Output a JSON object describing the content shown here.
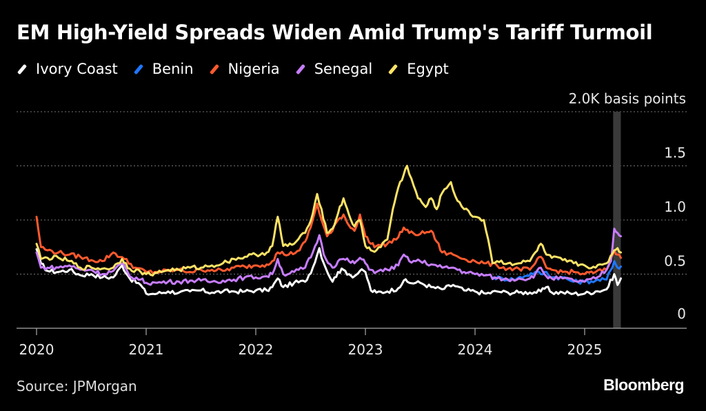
{
  "title": "EM High-Yield Spreads Widen Amid Trump's Tariff Turmoil",
  "source": "Source: JPMorgan",
  "brand": "Bloomberg",
  "chart_data": {
    "type": "line",
    "unit_label": "2.0K basis points",
    "x_ticks": [
      "2020",
      "2021",
      "2022",
      "2023",
      "2024",
      "2025"
    ],
    "y_ticks": [
      {
        "value": 0,
        "label": "0"
      },
      {
        "value": 500,
        "label": "0.5"
      },
      {
        "value": 1000,
        "label": "1.0"
      },
      {
        "value": 1500,
        "label": "1.5"
      },
      {
        "value": 2000,
        "label": "2.0K basis points"
      }
    ],
    "ylim": [
      0,
      2000
    ],
    "xlim": [
      2019.98,
      2025.7
    ],
    "grid": true,
    "legend_position": "top-left",
    "highlight_band": [
      2025.26,
      2025.33
    ],
    "series": [
      {
        "name": "Ivory Coast",
        "color": "#ffffff",
        "points": [
          [
            2020.0,
            730
          ],
          [
            2020.04,
            600
          ],
          [
            2020.1,
            530
          ],
          [
            2020.2,
            520
          ],
          [
            2020.3,
            540
          ],
          [
            2020.4,
            490
          ],
          [
            2020.5,
            500
          ],
          [
            2020.6,
            470
          ],
          [
            2020.7,
            470
          ],
          [
            2020.78,
            580
          ],
          [
            2020.85,
            460
          ],
          [
            2020.95,
            400
          ],
          [
            2021.0,
            320
          ],
          [
            2021.1,
            320
          ],
          [
            2021.2,
            340
          ],
          [
            2021.3,
            330
          ],
          [
            2021.4,
            340
          ],
          [
            2021.5,
            350
          ],
          [
            2021.6,
            330
          ],
          [
            2021.7,
            340
          ],
          [
            2021.8,
            340
          ],
          [
            2021.9,
            340
          ],
          [
            2022.0,
            350
          ],
          [
            2022.1,
            350
          ],
          [
            2022.15,
            380
          ],
          [
            2022.2,
            460
          ],
          [
            2022.25,
            380
          ],
          [
            2022.35,
            420
          ],
          [
            2022.45,
            430
          ],
          [
            2022.52,
            560
          ],
          [
            2022.58,
            740
          ],
          [
            2022.62,
            600
          ],
          [
            2022.7,
            430
          ],
          [
            2022.75,
            520
          ],
          [
            2022.8,
            540
          ],
          [
            2022.85,
            500
          ],
          [
            2022.9,
            480
          ],
          [
            2022.95,
            530
          ],
          [
            2023.0,
            520
          ],
          [
            2023.05,
            350
          ],
          [
            2023.1,
            330
          ],
          [
            2023.2,
            340
          ],
          [
            2023.3,
            370
          ],
          [
            2023.35,
            440
          ],
          [
            2023.4,
            420
          ],
          [
            2023.5,
            420
          ],
          [
            2023.6,
            380
          ],
          [
            2023.7,
            360
          ],
          [
            2023.8,
            400
          ],
          [
            2023.9,
            350
          ],
          [
            2024.0,
            340
          ],
          [
            2024.1,
            320
          ],
          [
            2024.2,
            340
          ],
          [
            2024.3,
            330
          ],
          [
            2024.4,
            330
          ],
          [
            2024.5,
            330
          ],
          [
            2024.6,
            340
          ],
          [
            2024.65,
            380
          ],
          [
            2024.7,
            330
          ],
          [
            2024.8,
            330
          ],
          [
            2024.9,
            320
          ],
          [
            2025.0,
            320
          ],
          [
            2025.1,
            340
          ],
          [
            2025.2,
            360
          ],
          [
            2025.27,
            500
          ],
          [
            2025.3,
            400
          ],
          [
            2025.33,
            460
          ]
        ]
      },
      {
        "name": "Benin",
        "color": "#1f77ff",
        "points": [
          [
            2024.17,
            470
          ],
          [
            2024.25,
            460
          ],
          [
            2024.35,
            450
          ],
          [
            2024.45,
            480
          ],
          [
            2024.55,
            520
          ],
          [
            2024.6,
            500
          ],
          [
            2024.65,
            520
          ],
          [
            2024.7,
            470
          ],
          [
            2024.8,
            470
          ],
          [
            2024.9,
            430
          ],
          [
            2025.0,
            430
          ],
          [
            2025.1,
            440
          ],
          [
            2025.2,
            450
          ],
          [
            2025.27,
            620
          ],
          [
            2025.3,
            560
          ],
          [
            2025.33,
            570
          ]
        ]
      },
      {
        "name": "Nigeria",
        "color": "#ff5a2e",
        "points": [
          [
            2020.0,
            1030
          ],
          [
            2020.04,
            750
          ],
          [
            2020.1,
            720
          ],
          [
            2020.2,
            700
          ],
          [
            2020.3,
            680
          ],
          [
            2020.4,
            660
          ],
          [
            2020.5,
            630
          ],
          [
            2020.6,
            620
          ],
          [
            2020.7,
            700
          ],
          [
            2020.8,
            640
          ],
          [
            2020.9,
            560
          ],
          [
            2021.0,
            520
          ],
          [
            2021.1,
            520
          ],
          [
            2021.2,
            530
          ],
          [
            2021.3,
            540
          ],
          [
            2021.4,
            520
          ],
          [
            2021.5,
            540
          ],
          [
            2021.6,
            540
          ],
          [
            2021.7,
            530
          ],
          [
            2021.8,
            560
          ],
          [
            2021.9,
            570
          ],
          [
            2022.0,
            580
          ],
          [
            2022.1,
            590
          ],
          [
            2022.15,
            620
          ],
          [
            2022.2,
            700
          ],
          [
            2022.3,
            680
          ],
          [
            2022.4,
            720
          ],
          [
            2022.45,
            800
          ],
          [
            2022.5,
            930
          ],
          [
            2022.56,
            1150
          ],
          [
            2022.6,
            1000
          ],
          [
            2022.65,
            850
          ],
          [
            2022.7,
            900
          ],
          [
            2022.75,
            1000
          ],
          [
            2022.8,
            1050
          ],
          [
            2022.85,
            950
          ],
          [
            2022.9,
            900
          ],
          [
            2022.95,
            1050
          ],
          [
            2023.0,
            850
          ],
          [
            2023.05,
            780
          ],
          [
            2023.1,
            760
          ],
          [
            2023.2,
            780
          ],
          [
            2023.3,
            840
          ],
          [
            2023.35,
            930
          ],
          [
            2023.4,
            880
          ],
          [
            2023.5,
            870
          ],
          [
            2023.6,
            900
          ],
          [
            2023.65,
            800
          ],
          [
            2023.7,
            700
          ],
          [
            2023.8,
            680
          ],
          [
            2023.9,
            640
          ],
          [
            2024.0,
            620
          ],
          [
            2024.1,
            600
          ],
          [
            2024.2,
            580
          ],
          [
            2024.3,
            550
          ],
          [
            2024.4,
            550
          ],
          [
            2024.5,
            540
          ],
          [
            2024.55,
            600
          ],
          [
            2024.6,
            660
          ],
          [
            2024.65,
            560
          ],
          [
            2024.7,
            540
          ],
          [
            2024.8,
            520
          ],
          [
            2024.9,
            520
          ],
          [
            2025.0,
            500
          ],
          [
            2025.1,
            520
          ],
          [
            2025.2,
            540
          ],
          [
            2025.27,
            720
          ],
          [
            2025.3,
            680
          ],
          [
            2025.33,
            650
          ]
        ]
      },
      {
        "name": "Senegal",
        "color": "#c77dff",
        "points": [
          [
            2020.0,
            700
          ],
          [
            2020.04,
            560
          ],
          [
            2020.1,
            560
          ],
          [
            2020.2,
            560
          ],
          [
            2020.3,
            580
          ],
          [
            2020.4,
            540
          ],
          [
            2020.5,
            540
          ],
          [
            2020.6,
            500
          ],
          [
            2020.7,
            530
          ],
          [
            2020.78,
            600
          ],
          [
            2020.85,
            480
          ],
          [
            2020.95,
            450
          ],
          [
            2021.0,
            420
          ],
          [
            2021.1,
            420
          ],
          [
            2021.2,
            430
          ],
          [
            2021.3,
            430
          ],
          [
            2021.4,
            440
          ],
          [
            2021.5,
            440
          ],
          [
            2021.6,
            430
          ],
          [
            2021.7,
            440
          ],
          [
            2021.8,
            450
          ],
          [
            2021.9,
            470
          ],
          [
            2022.0,
            470
          ],
          [
            2022.1,
            480
          ],
          [
            2022.15,
            500
          ],
          [
            2022.2,
            640
          ],
          [
            2022.25,
            500
          ],
          [
            2022.35,
            520
          ],
          [
            2022.45,
            560
          ],
          [
            2022.52,
            700
          ],
          [
            2022.58,
            860
          ],
          [
            2022.62,
            680
          ],
          [
            2022.7,
            560
          ],
          [
            2022.75,
            620
          ],
          [
            2022.8,
            640
          ],
          [
            2022.85,
            620
          ],
          [
            2022.9,
            600
          ],
          [
            2022.95,
            650
          ],
          [
            2023.0,
            600
          ],
          [
            2023.05,
            540
          ],
          [
            2023.1,
            520
          ],
          [
            2023.2,
            540
          ],
          [
            2023.3,
            580
          ],
          [
            2023.35,
            680
          ],
          [
            2023.4,
            620
          ],
          [
            2023.5,
            620
          ],
          [
            2023.6,
            590
          ],
          [
            2023.7,
            560
          ],
          [
            2023.8,
            560
          ],
          [
            2023.9,
            520
          ],
          [
            2024.0,
            500
          ],
          [
            2024.1,
            490
          ],
          [
            2024.2,
            460
          ],
          [
            2024.3,
            450
          ],
          [
            2024.4,
            460
          ],
          [
            2024.5,
            460
          ],
          [
            2024.55,
            500
          ],
          [
            2024.6,
            560
          ],
          [
            2024.65,
            480
          ],
          [
            2024.7,
            460
          ],
          [
            2024.8,
            460
          ],
          [
            2024.9,
            440
          ],
          [
            2025.0,
            430
          ],
          [
            2025.1,
            460
          ],
          [
            2025.2,
            540
          ],
          [
            2025.24,
            620
          ],
          [
            2025.27,
            920
          ],
          [
            2025.3,
            880
          ],
          [
            2025.33,
            850
          ]
        ]
      },
      {
        "name": "Egypt",
        "color": "#ffe366",
        "points": [
          [
            2020.0,
            780
          ],
          [
            2020.04,
            640
          ],
          [
            2020.1,
            650
          ],
          [
            2020.2,
            650
          ],
          [
            2020.3,
            620
          ],
          [
            2020.4,
            560
          ],
          [
            2020.5,
            560
          ],
          [
            2020.6,
            550
          ],
          [
            2020.7,
            560
          ],
          [
            2020.78,
            640
          ],
          [
            2020.85,
            550
          ],
          [
            2020.95,
            520
          ],
          [
            2021.0,
            500
          ],
          [
            2021.1,
            510
          ],
          [
            2021.2,
            540
          ],
          [
            2021.3,
            540
          ],
          [
            2021.4,
            560
          ],
          [
            2021.5,
            560
          ],
          [
            2021.6,
            580
          ],
          [
            2021.7,
            600
          ],
          [
            2021.8,
            640
          ],
          [
            2021.9,
            660
          ],
          [
            2022.0,
            680
          ],
          [
            2022.1,
            700
          ],
          [
            2022.15,
            760
          ],
          [
            2022.2,
            1030
          ],
          [
            2022.25,
            760
          ],
          [
            2022.35,
            780
          ],
          [
            2022.45,
            880
          ],
          [
            2022.52,
            1060
          ],
          [
            2022.56,
            1240
          ],
          [
            2022.6,
            1100
          ],
          [
            2022.65,
            880
          ],
          [
            2022.7,
            920
          ],
          [
            2022.75,
            1060
          ],
          [
            2022.8,
            1200
          ],
          [
            2022.85,
            1050
          ],
          [
            2022.9,
            940
          ],
          [
            2022.95,
            1000
          ],
          [
            2023.0,
            760
          ],
          [
            2023.05,
            720
          ],
          [
            2023.1,
            720
          ],
          [
            2023.2,
            820
          ],
          [
            2023.25,
            1100
          ],
          [
            2023.3,
            1300
          ],
          [
            2023.35,
            1420
          ],
          [
            2023.38,
            1500
          ],
          [
            2023.42,
            1380
          ],
          [
            2023.48,
            1200
          ],
          [
            2023.55,
            1120
          ],
          [
            2023.6,
            1200
          ],
          [
            2023.65,
            1100
          ],
          [
            2023.7,
            1250
          ],
          [
            2023.78,
            1350
          ],
          [
            2023.82,
            1220
          ],
          [
            2023.9,
            1100
          ],
          [
            2024.0,
            1030
          ],
          [
            2024.08,
            1000
          ],
          [
            2024.12,
            820
          ],
          [
            2024.16,
            600
          ],
          [
            2024.2,
            620
          ],
          [
            2024.3,
            600
          ],
          [
            2024.4,
            600
          ],
          [
            2024.5,
            620
          ],
          [
            2024.55,
            700
          ],
          [
            2024.6,
            780
          ],
          [
            2024.65,
            680
          ],
          [
            2024.7,
            650
          ],
          [
            2024.8,
            630
          ],
          [
            2024.9,
            600
          ],
          [
            2025.0,
            580
          ],
          [
            2025.1,
            560
          ],
          [
            2025.2,
            600
          ],
          [
            2025.27,
            720
          ],
          [
            2025.3,
            740
          ],
          [
            2025.33,
            700
          ]
        ]
      }
    ]
  }
}
